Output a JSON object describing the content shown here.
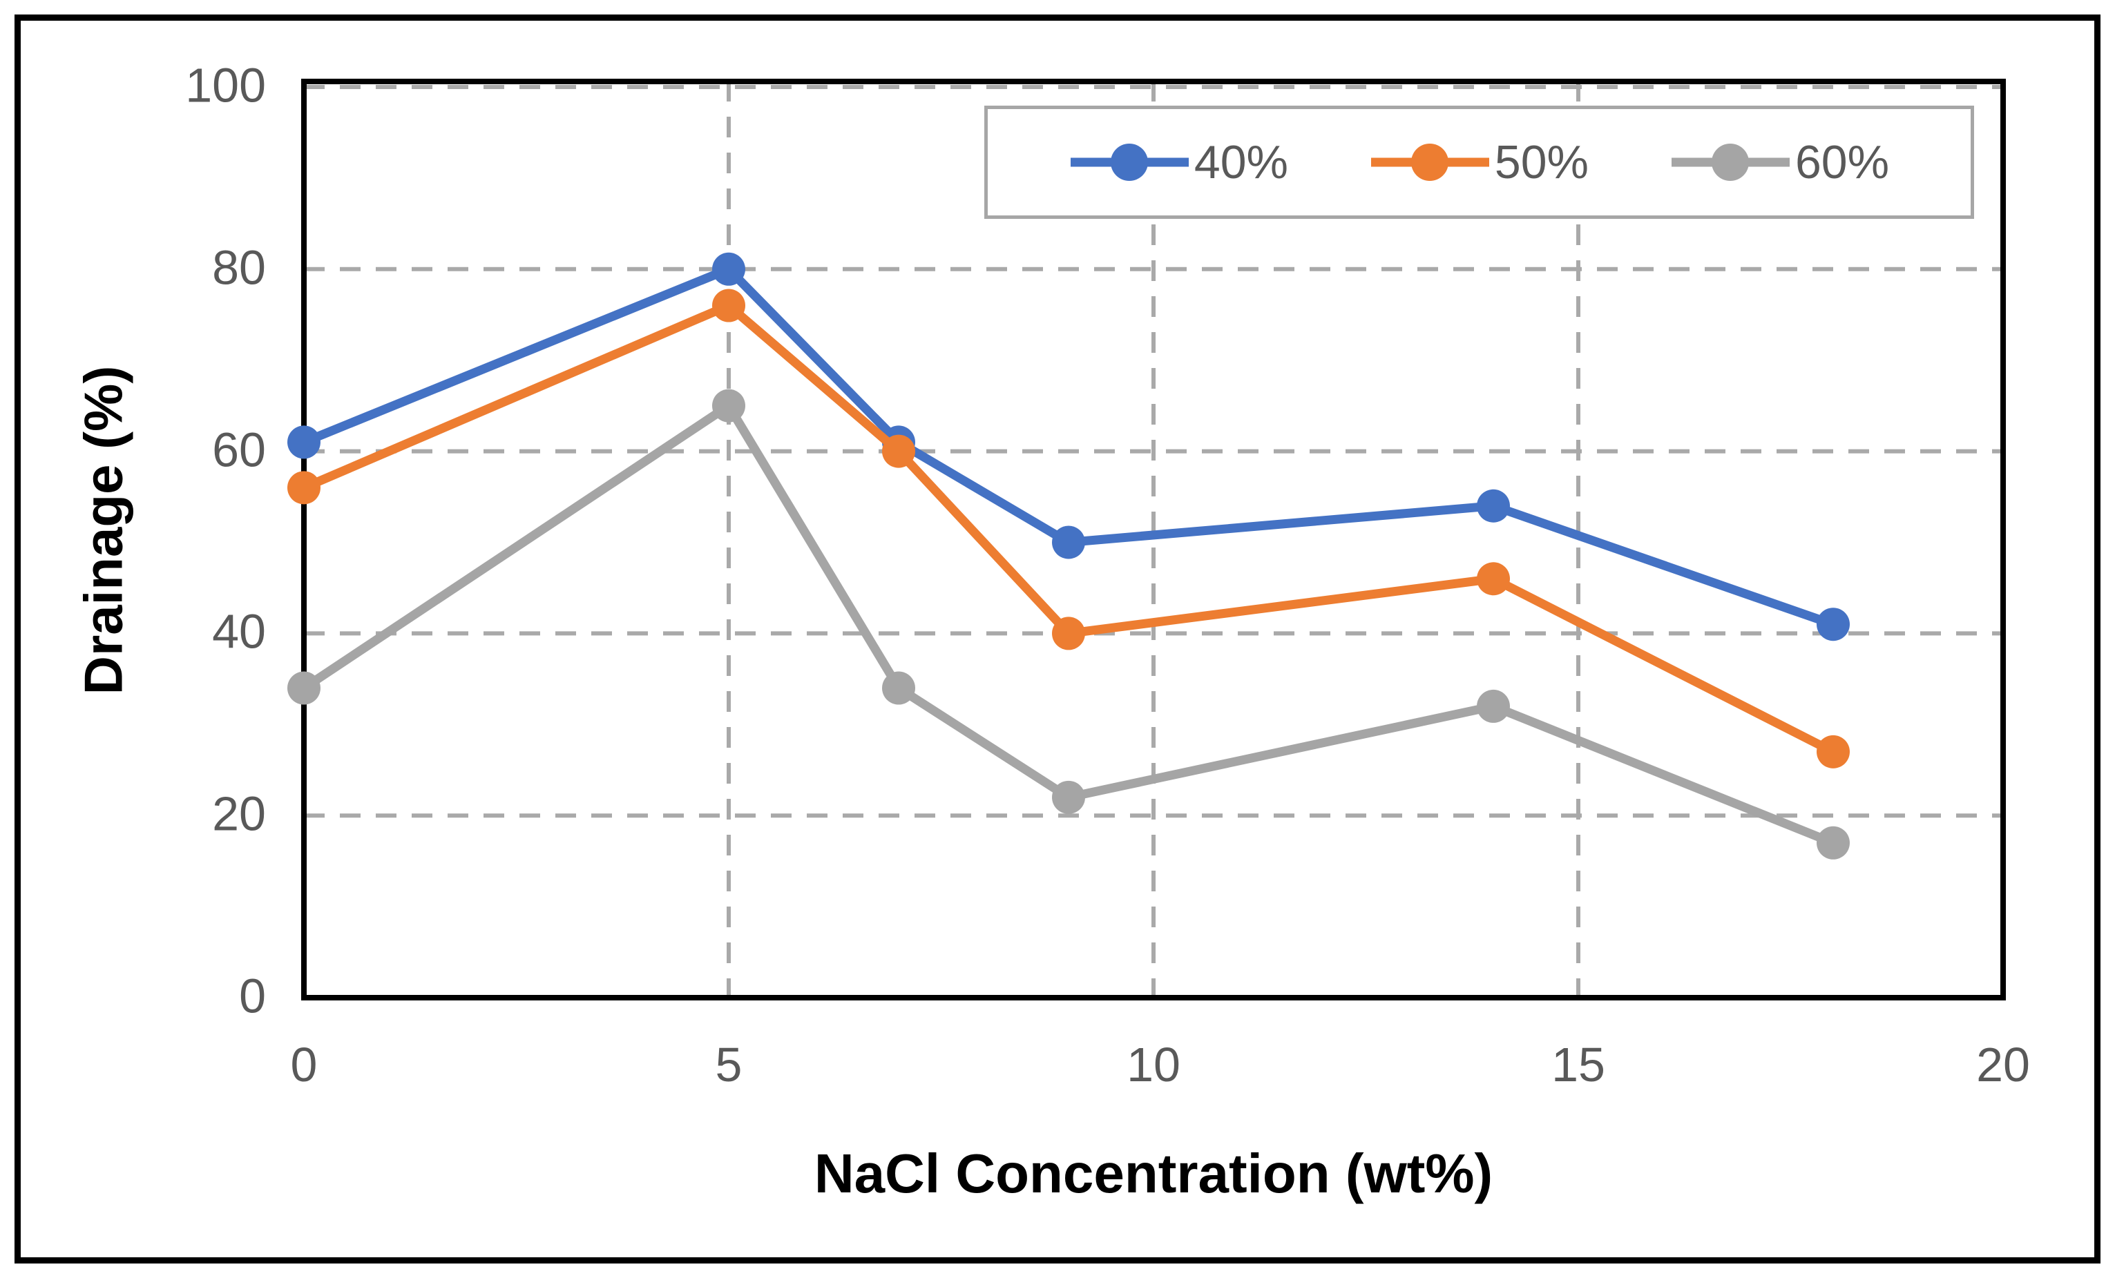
{
  "figure": {
    "background": "#FFFFFF",
    "outer_border_color": "#000000"
  },
  "chart_data": {
    "type": "line",
    "title": "",
    "xlabel": "NaCl Concentration (wt%)",
    "ylabel": "Drainage (%)",
    "x": [
      0,
      5,
      7,
      9,
      14,
      18
    ],
    "series": [
      {
        "name": "40%",
        "color": "#4472C4",
        "values": [
          61,
          80,
          61,
          50,
          54,
          41
        ]
      },
      {
        "name": "50%",
        "color": "#ED7D31",
        "values": [
          56,
          76,
          60,
          40,
          46,
          27
        ]
      },
      {
        "name": "60%",
        "color": "#A5A5A5",
        "values": [
          34,
          65,
          34,
          22,
          32,
          17
        ]
      }
    ],
    "xlim": [
      0,
      20
    ],
    "ylim": [
      0,
      100
    ],
    "x_ticks": [
      0,
      5,
      10,
      15,
      20
    ],
    "y_ticks": [
      0,
      20,
      40,
      60,
      80,
      100
    ],
    "grid": "dashed",
    "grid_color": "#A9A9A9",
    "axis_color": "#000000",
    "tick_label_color": "#595959",
    "axis_title_color": "#000000",
    "legend_position": "top-inside",
    "legend_border_color": "#A6A6A6",
    "marker": "circle"
  }
}
